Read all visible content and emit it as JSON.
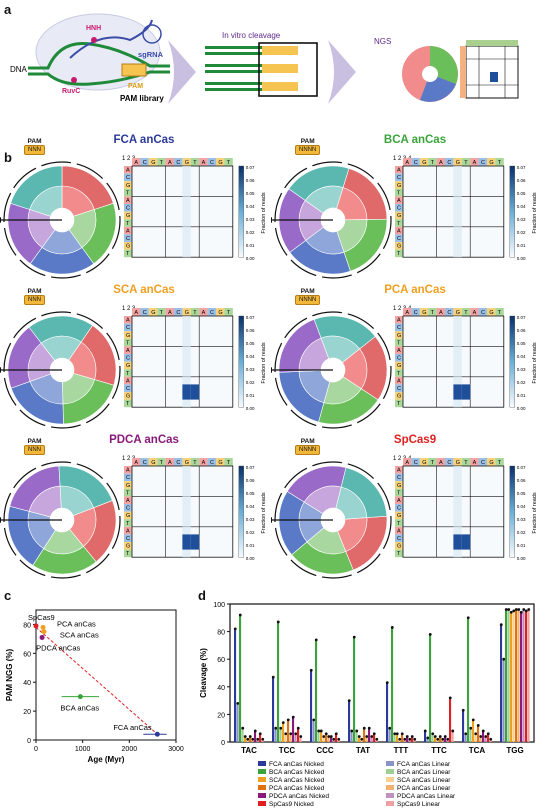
{
  "panel_labels": {
    "a": "a",
    "b": "b",
    "c": "c",
    "d": "d"
  },
  "panel_a": {
    "dna": "DNA",
    "hnh": "HNH",
    "sgrna": "sgRNA",
    "ruvc": "RuvC",
    "pam": "PAM",
    "pam_library": "PAM library",
    "in_vitro": "In vitro cleavage",
    "ngs": "NGS"
  },
  "panel_b": {
    "pam_label": "PAM",
    "heatmap_cbar_label": "Fraction of reads",
    "cbar_ticks": [
      "0.07",
      "0.06",
      "0.05",
      "0.04",
      "0.03",
      "0.02",
      "0.01",
      "0.00"
    ],
    "bases": [
      "A",
      "C",
      "G",
      "T"
    ],
    "enzymes": [
      {
        "title": "FCA anCas",
        "color": "#2b3a9a",
        "pam": "NNN",
        "pos": "1 2 3",
        "hot": []
      },
      {
        "title": "BCA anCas",
        "color": "#3aa43a",
        "pam": "NNNN",
        "pos": "1 2 3 4",
        "hot": []
      },
      {
        "title": "SCA anCas",
        "color": "#f0a020",
        "pam": "NNN",
        "pos": "1 2 3",
        "hot": [
          [
            9,
            6
          ],
          [
            9,
            7
          ],
          [
            10,
            6
          ],
          [
            10,
            7
          ]
        ]
      },
      {
        "title": "PCA anCas",
        "color": "#f0a020",
        "pam": "NNNN",
        "pos": "1 2 3 4",
        "hot": [
          [
            9,
            6
          ],
          [
            9,
            7
          ],
          [
            10,
            6
          ],
          [
            10,
            7
          ]
        ]
      },
      {
        "title": "PDCA anCas",
        "color": "#8a1a7a",
        "pam": "NNN",
        "pos": "1 2 3",
        "hot": [
          [
            9,
            6
          ],
          [
            9,
            7
          ],
          [
            10,
            6
          ],
          [
            10,
            7
          ]
        ]
      },
      {
        "title": "SpCas9",
        "color": "#e02020",
        "pam": "NNNN",
        "pos": "1 2 3 4",
        "hot": [
          [
            9,
            6
          ],
          [
            9,
            7
          ],
          [
            10,
            6
          ],
          [
            10,
            7
          ]
        ]
      }
    ]
  },
  "panel_c": {
    "chart_data": {
      "type": "scatter",
      "xlabel": "Age (Myr)",
      "ylabel": "PAM NGG (%)",
      "xlim": [
        0,
        3000
      ],
      "ylim": [
        0,
        90
      ],
      "xticks": [
        "0",
        "1000",
        "2000",
        "3000"
      ],
      "yticks": [
        "0",
        "20",
        "40",
        "60",
        "80"
      ],
      "points": [
        {
          "name": "SpCas9",
          "x": 0,
          "y": 79,
          "color": "#e02020"
        },
        {
          "name": "PCA anCas",
          "x": 150,
          "y": 78,
          "color": "#f0a020"
        },
        {
          "name": "SCA anCas",
          "x": 170,
          "y": 75,
          "color": "#f0a020"
        },
        {
          "name": "PDCA anCas",
          "x": 130,
          "y": 71,
          "color": "#8a1a7a"
        },
        {
          "name": "BCA anCas",
          "x": 950,
          "y": 30,
          "color": "#3aa43a"
        },
        {
          "name": "FCA anCas",
          "x": 2600,
          "y": 4,
          "color": "#2b3a9a"
        }
      ],
      "trendline": [
        [
          0,
          78
        ],
        [
          2600,
          4
        ]
      ]
    }
  },
  "panel_d": {
    "chart_data": {
      "type": "bar",
      "ylabel": "Cleavage (%)",
      "ylim": [
        0,
        100
      ],
      "yticks": [
        "0",
        "20",
        "40",
        "60",
        "80",
        "100"
      ],
      "categories": [
        "TAC",
        "TCC",
        "CCC",
        "TAT",
        "TTT",
        "TTC",
        "TCA",
        "TGG"
      ],
      "series": [
        {
          "name": "FCA anCas Nicked",
          "color": "#2b3a9a",
          "values": [
            82,
            47,
            52,
            30,
            43,
            8,
            23,
            85
          ]
        },
        {
          "name": "FCA anCas Linear",
          "color": "#8a93c8",
          "values": [
            28,
            10,
            16,
            8,
            10,
            3,
            6,
            60
          ]
        },
        {
          "name": "BCA anCas Nicked",
          "color": "#3aa43a",
          "values": [
            92,
            87,
            74,
            76,
            83,
            78,
            90,
            96
          ]
        },
        {
          "name": "BCA anCas Linear",
          "color": "#a0d090",
          "values": [
            10,
            10,
            8,
            8,
            6,
            6,
            10,
            96
          ]
        },
        {
          "name": "SCA anCas Nicked",
          "color": "#f0a020",
          "values": [
            4,
            14,
            8,
            4,
            6,
            4,
            16,
            94
          ]
        },
        {
          "name": "SCA anCas Linear",
          "color": "#f8d090",
          "values": [
            2,
            6,
            4,
            2,
            2,
            2,
            6,
            95
          ]
        },
        {
          "name": "PCA anCas Nicked",
          "color": "#e07010",
          "values": [
            4,
            16,
            6,
            10,
            6,
            4,
            12,
            96
          ]
        },
        {
          "name": "PCA anCas Linear",
          "color": "#f4b070",
          "values": [
            2,
            6,
            4,
            4,
            2,
            2,
            4,
            96
          ]
        },
        {
          "name": "PDCA anCas Nicked",
          "color": "#8a1a7a",
          "values": [
            8,
            18,
            4,
            10,
            4,
            4,
            8,
            94
          ]
        },
        {
          "name": "PDCA anCas Linear",
          "color": "#c090c0",
          "values": [
            2,
            6,
            2,
            4,
            2,
            2,
            4,
            96
          ]
        },
        {
          "name": "SpCas9 Nicked",
          "color": "#e02020",
          "values": [
            6,
            10,
            6,
            6,
            4,
            32,
            6,
            95
          ]
        },
        {
          "name": "SpCas9 Linear",
          "color": "#f0a0a0",
          "values": [
            2,
            4,
            2,
            2,
            2,
            8,
            2,
            96
          ]
        }
      ]
    }
  }
}
